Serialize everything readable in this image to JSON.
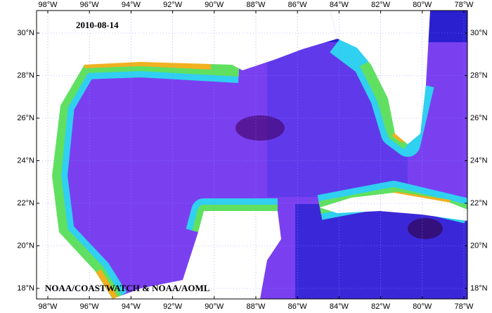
{
  "map": {
    "date": "2010-08-14",
    "credit": "NOAA/COASTWATCH & NOAA/AOML",
    "lon_labels": [
      "98°W",
      "96°W",
      "94°W",
      "92°W",
      "90°W",
      "88°W",
      "86°W",
      "84°W",
      "82°W",
      "80°W",
      "78°W"
    ],
    "lat_labels": [
      "30°N",
      "28°N",
      "26°N",
      "24°N",
      "22°N",
      "20°N",
      "18°N"
    ]
  }
}
